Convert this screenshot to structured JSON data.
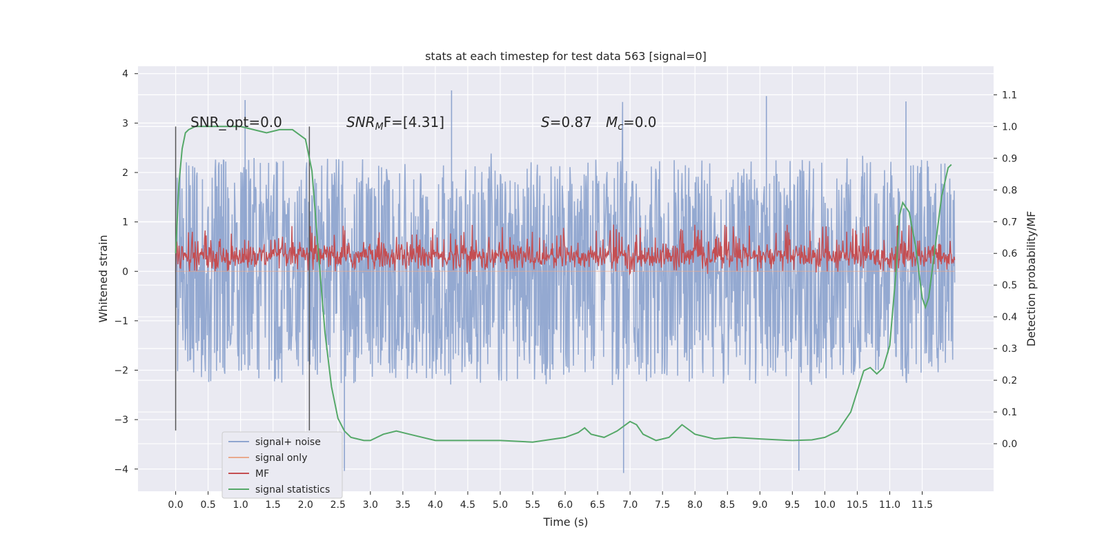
{
  "chart_data": {
    "type": "line",
    "title": "stats at each timestep for test data 563 [signal=0]",
    "xlabel": "Time (s)",
    "ylabel": "Whitened strain",
    "y2label": "Detection probability/MF",
    "xlim": [
      -0.58,
      12.6
    ],
    "ylim": [
      -4.45,
      4.15
    ],
    "y2lim": [
      -0.15,
      1.19
    ],
    "x_ticks": [
      "0.0",
      "0.5",
      "1.0",
      "1.5",
      "2.0",
      "2.5",
      "3.0",
      "3.5",
      "4.0",
      "4.5",
      "5.0",
      "5.5",
      "6.0",
      "6.5",
      "7.0",
      "7.5",
      "8.0",
      "8.5",
      "9.0",
      "9.5",
      "10.0",
      "10.5",
      "11.0",
      "11.5"
    ],
    "y_ticks": [
      "4",
      "3",
      "2",
      "1",
      "0",
      "−1",
      "−2",
      "−3",
      "−4"
    ],
    "y2_ticks": [
      "1.1",
      "1.0",
      "0.9",
      "0.8",
      "0.7",
      "0.6",
      "0.5",
      "0.4",
      "0.3",
      "0.2",
      "0.1",
      "0.0"
    ],
    "grid": true,
    "legend_position": "lower-left",
    "annotations": {
      "snr_opt": "SNR_opt=0.0",
      "snr_mf_label": "SNR",
      "snr_mf_sub": "M",
      "snr_mf_rest": "F=[4.31]",
      "s_label": "S",
      "s_rest": "=0.87",
      "mc_label": "M",
      "mc_sub": "c",
      "mc_rest": "=0.0"
    },
    "window_markers_x": [
      0.0,
      2.06
    ],
    "series": [
      {
        "name": "signal+ noise",
        "color": "#8fa5cf",
        "axis": "left",
        "kind": "noise",
        "x_range": [
          0.0,
          12.0
        ],
        "typical_range": [
          -2.0,
          2.0
        ],
        "extremes_y": [
          3.8,
          -4.1
        ]
      },
      {
        "name": "signal only",
        "color": "#e9a98c",
        "axis": "left",
        "kind": "flat",
        "values": [
          0.0
        ]
      },
      {
        "name": "MF",
        "color": "#c44e52",
        "axis": "left",
        "kind": "noise",
        "x_range": [
          0.0,
          12.0
        ],
        "typical_range": [
          0.0,
          0.6
        ],
        "extremes_y": [
          1.0,
          -0.05
        ]
      },
      {
        "name": "signal statistics",
        "color": "#55a868",
        "axis": "right",
        "x": [
          0.0,
          0.05,
          0.1,
          0.15,
          0.2,
          0.3,
          0.5,
          0.8,
          1.0,
          1.2,
          1.4,
          1.6,
          1.8,
          2.0,
          2.1,
          2.2,
          2.3,
          2.4,
          2.5,
          2.6,
          2.7,
          2.8,
          2.9,
          3.0,
          3.2,
          3.4,
          3.6,
          4.0,
          4.5,
          5.0,
          5.5,
          6.0,
          6.2,
          6.3,
          6.4,
          6.6,
          6.8,
          7.0,
          7.1,
          7.2,
          7.4,
          7.6,
          7.8,
          8.0,
          8.3,
          8.6,
          9.0,
          9.5,
          9.8,
          10.0,
          10.2,
          10.4,
          10.6,
          10.7,
          10.8,
          10.9,
          11.0,
          11.1,
          11.15,
          11.2,
          11.3,
          11.4,
          11.5,
          11.55,
          11.6,
          11.7,
          11.8,
          11.9,
          11.95
        ],
        "y": [
          0.6,
          0.82,
          0.93,
          0.98,
          0.99,
          1.0,
          1.0,
          1.0,
          1.0,
          0.99,
          0.98,
          0.99,
          0.99,
          0.96,
          0.86,
          0.6,
          0.35,
          0.18,
          0.08,
          0.04,
          0.02,
          0.015,
          0.01,
          0.01,
          0.03,
          0.04,
          0.03,
          0.01,
          0.01,
          0.01,
          0.005,
          0.02,
          0.035,
          0.05,
          0.03,
          0.02,
          0.04,
          0.07,
          0.06,
          0.03,
          0.01,
          0.02,
          0.06,
          0.03,
          0.015,
          0.02,
          0.015,
          0.01,
          0.012,
          0.02,
          0.04,
          0.1,
          0.23,
          0.24,
          0.22,
          0.24,
          0.31,
          0.55,
          0.72,
          0.76,
          0.73,
          0.62,
          0.46,
          0.43,
          0.46,
          0.62,
          0.78,
          0.87,
          0.88
        ]
      }
    ]
  }
}
